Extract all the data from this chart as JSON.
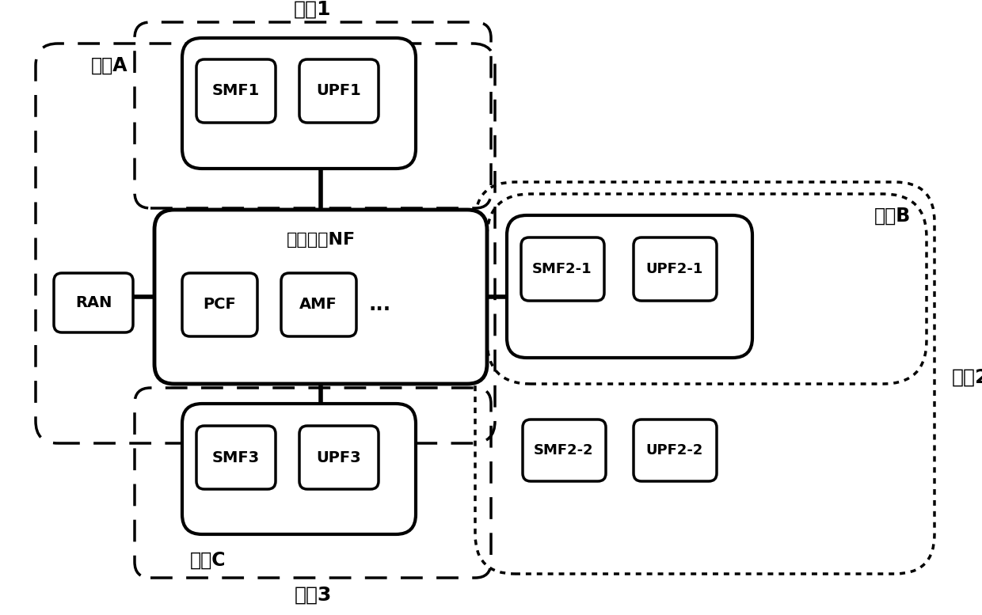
{
  "bg_color": "#ffffff",
  "labels": {
    "region1": "地区1",
    "region2": "地区2",
    "region3": "地区3",
    "sliceA": "切片A",
    "sliceB": "切片B",
    "sliceC": "切片C",
    "shared_nf": "切片共享NF",
    "RAN": "RAN",
    "PCF": "PCF",
    "AMF": "AMF",
    "dots": "...",
    "SMF1": "SMF1",
    "UPF1": "UPF1",
    "SMF3": "SMF3",
    "UPF3": "UPF3",
    "SMF21": "SMF2-1",
    "UPF21": "UPF2-1",
    "SMF22": "SMF2-2",
    "UPF22": "UPF2-2"
  },
  "font_size_title": 18,
  "font_size_large": 16,
  "font_size_medium": 14,
  "font_size_small": 12
}
